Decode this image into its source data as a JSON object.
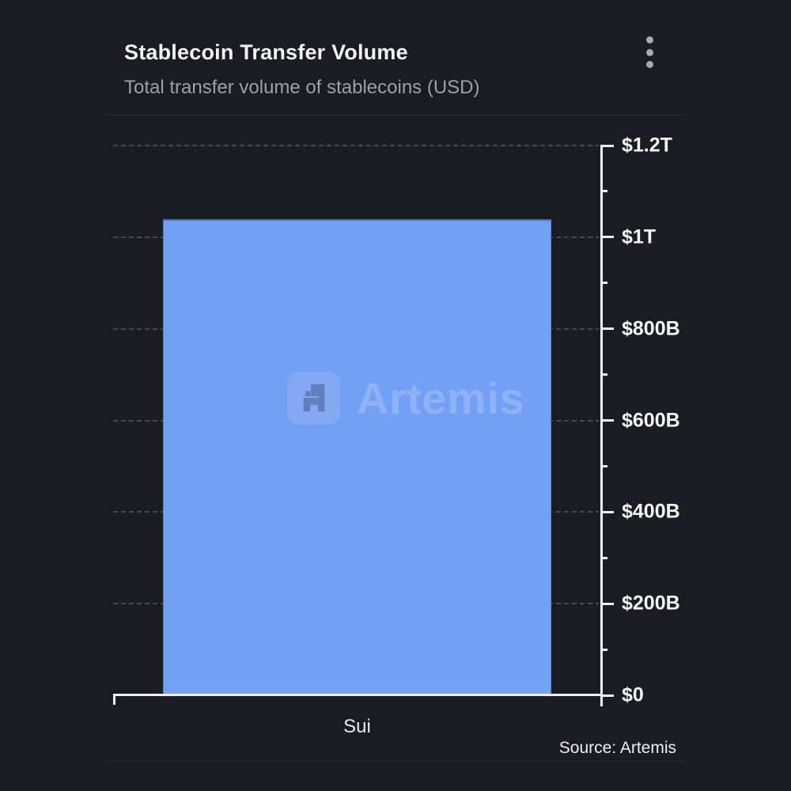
{
  "header": {
    "title": "Stablecoin Transfer Volume",
    "subtitle": "Total transfer volume of stablecoins (USD)",
    "menu_icon": "kebab-vertical-icon"
  },
  "chart_data": {
    "type": "bar",
    "title": "Stablecoin Transfer Volume",
    "subtitle": "Total transfer volume of stablecoins (USD)",
    "categories": [
      "Sui"
    ],
    "values": [
      1040
    ],
    "units": "billions USD (axis shows $0–$1.2T)",
    "ylim": [
      0,
      1200
    ],
    "xlabel": "",
    "ylabel": "",
    "y_axis_side": "right",
    "grid": "horizontal-dashed",
    "legend": "none",
    "yticks": [
      {
        "label": "$1.2T",
        "value": 1200
      },
      {
        "label": "$1T",
        "value": 1000
      },
      {
        "label": "$800B",
        "value": 800
      },
      {
        "label": "$600B",
        "value": 600
      },
      {
        "label": "$400B",
        "value": 400
      },
      {
        "label": "$200B",
        "value": 200
      },
      {
        "label": "$0",
        "value": 0
      }
    ]
  },
  "watermark": {
    "logo_icon": "artemis-logo-icon",
    "text": "Artemis"
  },
  "footer": {
    "source": "Source: Artemis"
  },
  "colors": {
    "background": "#1a1b23",
    "bar": "#71a0f5",
    "axis": "#edeff3",
    "gridline": "#454752",
    "title_text": "#f3f4f6",
    "subtitle_text": "#9da0aa",
    "watermark_text": "#8fb2f7"
  }
}
